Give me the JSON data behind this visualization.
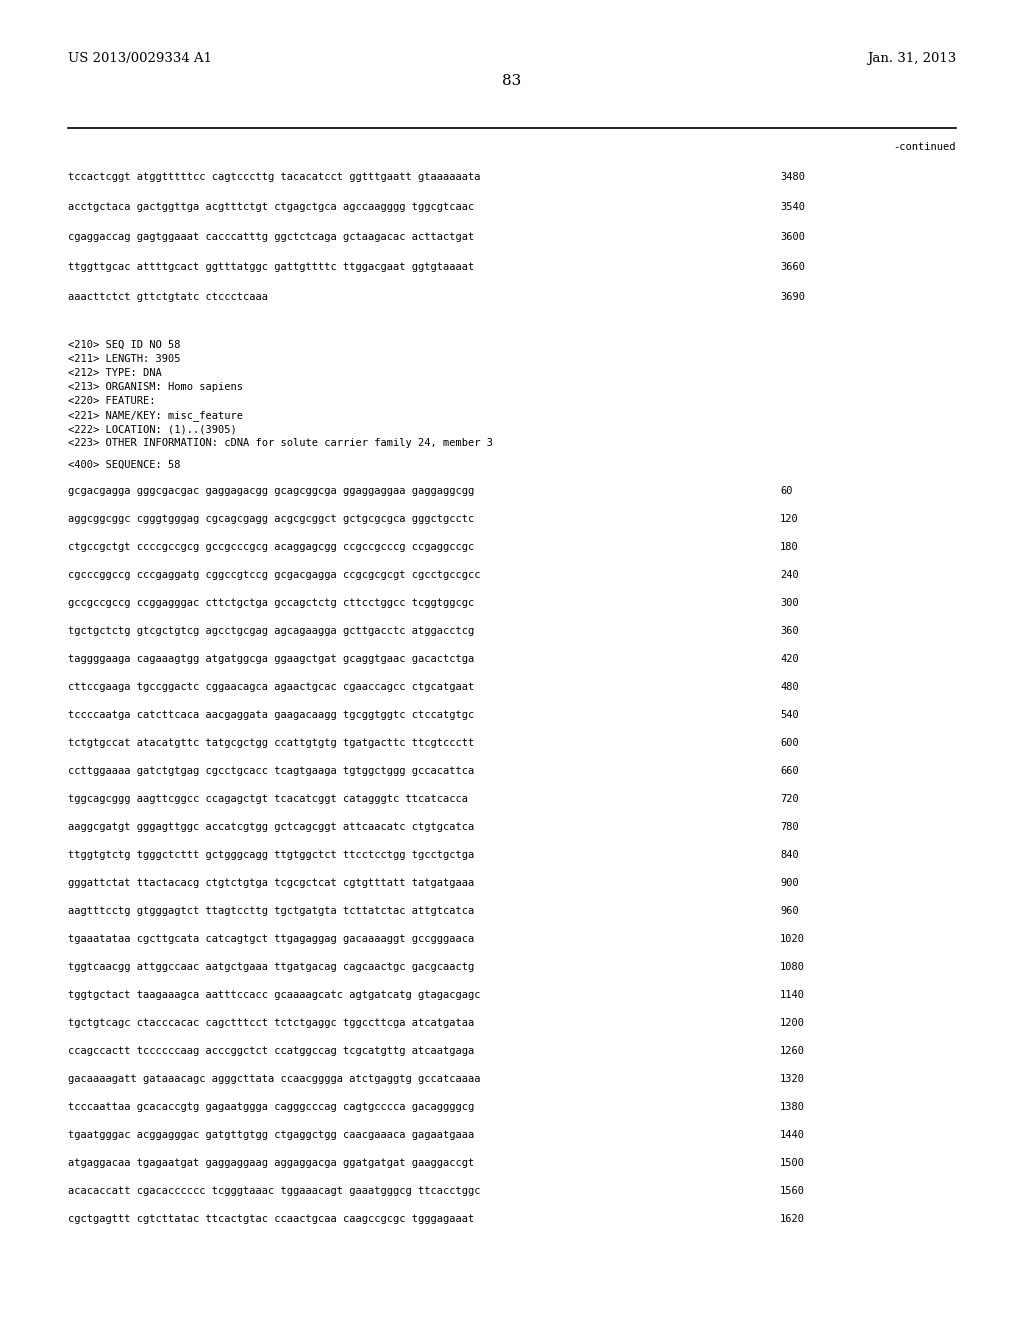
{
  "header_left": "US 2013/0029334 A1",
  "header_right": "Jan. 31, 2013",
  "page_number": "83",
  "continued_label": "-continued",
  "background_color": "#ffffff",
  "text_color": "#000000",
  "font_size_header": 9.5,
  "font_size_body": 7.5,
  "font_size_page": 11,
  "sequence_lines_top": [
    [
      "tccactcggt atggtttttcc cagtcccttg tacacatcct ggtttgaatt gtaaaaaata",
      "3480"
    ],
    [
      "acctgctaca gactggttga acgtttctgt ctgagctgca agccaagggg tggcgtcaac",
      "3540"
    ],
    [
      "cgaggaccag gagtggaaat cacccatttg ggctctcaga gctaagacac acttactgat",
      "3600"
    ],
    [
      "ttggttgcac attttgcact ggtttatggc gattgttttc ttggacgaat ggtgtaaaat",
      "3660"
    ],
    [
      "aaacttctct gttctgtatc ctccctcaaa",
      "3690"
    ]
  ],
  "metadata_lines": [
    "<210> SEQ ID NO 58",
    "<211> LENGTH: 3905",
    "<212> TYPE: DNA",
    "<213> ORGANISM: Homo sapiens",
    "<220> FEATURE:",
    "<221> NAME/KEY: misc_feature",
    "<222> LOCATION: (1)..(3905)",
    "<223> OTHER INFORMATION: cDNA for solute carrier family 24, member 3"
  ],
  "sequence_header": "<400> SEQUENCE: 58",
  "sequence_lines": [
    [
      "gcgacgagga gggcgacgac gaggagacgg gcagcggcga ggaggaggaa gaggaggcgg",
      "60"
    ],
    [
      "aggcggcggc cgggtgggag cgcagcgagg acgcgcggct gctgcgcgca gggctgcctc",
      "120"
    ],
    [
      "ctgccgctgt ccccgccgcg gccgcccgcg acaggagcgg ccgccgcccg ccgaggccgc",
      "180"
    ],
    [
      "cgcccggccg cccgaggatg cggccgtccg gcgacgagga ccgcgcgcgt cgcctgccgcc",
      "240"
    ],
    [
      "gccgccgccg ccggagggac cttctgctga gccagctctg cttcctggcc tcggtggcgc",
      "300"
    ],
    [
      "tgctgctctg gtcgctgtcg agcctgcgag agcagaagga gcttgacctc atggacctcg",
      "360"
    ],
    [
      "taggggaaga cagaaagtgg atgatggcga ggaagctgat gcaggtgaac gacactctga",
      "420"
    ],
    [
      "cttccgaaga tgccggactc cggaacagca agaactgcac cgaaccagcc ctgcatgaat",
      "480"
    ],
    [
      "tccccaatga catcttcaca aacgaggata gaagacaagg tgcggtggtc ctccatgtgc",
      "540"
    ],
    [
      "tctgtgccat atacatgttc tatgcgctgg ccattgtgtg tgatgacttc ttcgtccctt",
      "600"
    ],
    [
      "ccttggaaaa gatctgtgag cgcctgcacc tcagtgaaga tgtggctggg gccacattca",
      "660"
    ],
    [
      "tggcagcggg aagttcggcc ccagagctgt tcacatcggt catagggtc ttcatcacca",
      "720"
    ],
    [
      "aaggcgatgt gggagttggc accatcgtgg gctcagcggt attcaacatc ctgtgcatca",
      "780"
    ],
    [
      "ttggtgtctg tgggctcttt gctgggcagg ttgtggctct ttcctcctgg tgcctgctga",
      "840"
    ],
    [
      "gggattctat ttactacacg ctgtctgtga tcgcgctcat cgtgtttatt tatgatgaaa",
      "900"
    ],
    [
      "aagtttcctg gtgggagtct ttagtccttg tgctgatgta tcttatctac attgtcatca",
      "960"
    ],
    [
      "tgaaatataa cgcttgcata catcagtgct ttgagaggag gacaaaaggt gccgggaaca",
      "1020"
    ],
    [
      "tggtcaacgg attggccaac aatgctgaaa ttgatgacag cagcaactgc gacgcaactg",
      "1080"
    ],
    [
      "tggtgctact taagaaagca aatttccacc gcaaaagcatc agtgatcatg gtagacgagc",
      "1140"
    ],
    [
      "tgctgtcagc ctacccacac cagctttcct tctctgaggc tggccttcga atcatgataa",
      "1200"
    ],
    [
      "ccagccactt tccccccaag acccggctct ccatggccag tcgcatgttg atcaatgaga",
      "1260"
    ],
    [
      "gacaaaagatt gataaacagc agggcttata ccaacgggga atctgaggtg gccatcaaaa",
      "1320"
    ],
    [
      "tcccaattaa gcacaccgtg gagaatggga cagggcccag cagtgcccca gacaggggcg",
      "1380"
    ],
    [
      "tgaatgggac acggagggac gatgttgtgg ctgaggctgg caacgaaaca gagaatgaaa",
      "1440"
    ],
    [
      "atgaggacaa tgagaatgat gaggaggaag aggaggacga ggatgatgat gaaggaccgt",
      "1500"
    ],
    [
      "acacaccatt cgacacccccc tcgggtaaac tggaaacagt gaaatgggcg ttcacctggc",
      "1560"
    ],
    [
      "cgctgagttt cgtcttatac ttcactgtac ccaactgcaa caagccgcgc tgggagaaat",
      "1620"
    ]
  ]
}
